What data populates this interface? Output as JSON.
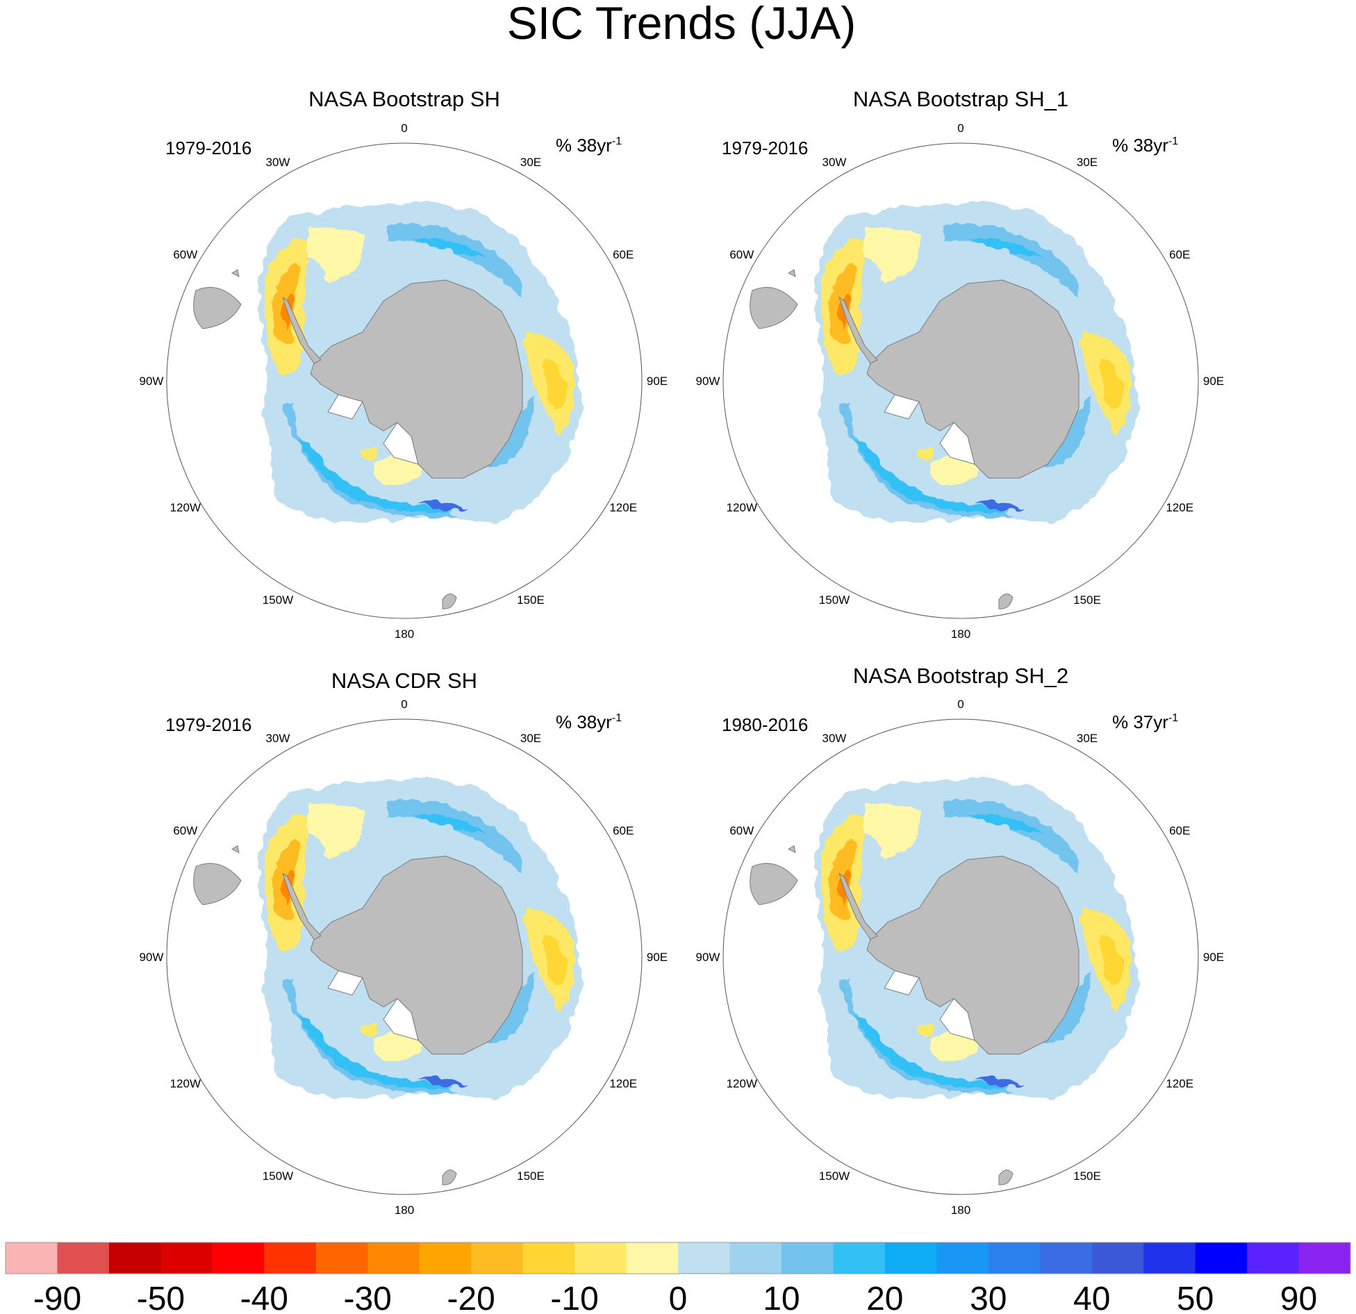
{
  "figure": {
    "title": "SIC Trends (JJA)",
    "colors": {
      "land": "#bdbdbd",
      "land_edge": "#7a7a7a",
      "circle": "#555555",
      "open_water": "#ffffff"
    }
  },
  "lon_labels": [
    "0",
    "30E",
    "60E",
    "90E",
    "120E",
    "150E",
    "180",
    "150W",
    "120W",
    "90W",
    "60W",
    "30W"
  ],
  "panels": [
    {
      "title": "NASA Bootstrap SH",
      "period": "1979-2016",
      "units_prefix": "% 38yr",
      "units_exp": "-1"
    },
    {
      "title": "NASA Bootstrap SH_1",
      "period": "1979-2016",
      "units_prefix": "% 38yr",
      "units_exp": "-1"
    },
    {
      "title": "NASA CDR SH",
      "period": "1979-2016",
      "units_prefix": "% 38yr",
      "units_exp": "-1"
    },
    {
      "title": "NASA Bootstrap SH_2",
      "period": "1980-2016",
      "units_prefix": "% 37yr",
      "units_exp": "-1"
    }
  ],
  "colorbar": {
    "colors": [
      "#fbb4b4",
      "#e05050",
      "#c60000",
      "#dd0000",
      "#ff0000",
      "#ff3300",
      "#ff6600",
      "#ff8800",
      "#ffa500",
      "#ffbb22",
      "#ffd633",
      "#ffe866",
      "#fff8a8",
      "#c0e0f2",
      "#9fd2ef",
      "#72c4ef",
      "#33c0f5",
      "#0dacf5",
      "#1a96f5",
      "#2b80ee",
      "#3a6ce2",
      "#3a58d8",
      "#2032ec",
      "#0000ff",
      "#5a22ff",
      "#8a22f0"
    ],
    "labels": [
      "-90",
      "-50",
      "-40",
      "-30",
      "-20",
      "-10",
      "0",
      "10",
      "20",
      "30",
      "40",
      "50",
      "90"
    ]
  }
}
